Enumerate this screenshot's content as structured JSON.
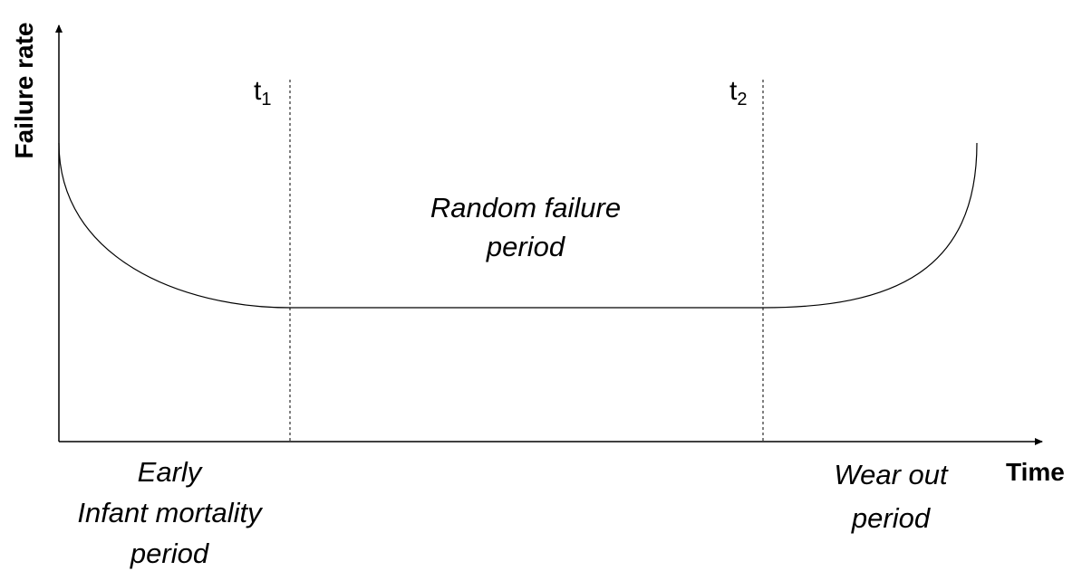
{
  "axes": {
    "y_label": "Failure rate",
    "x_label": "Time"
  },
  "markers": [
    {
      "base": "t",
      "subscript": "1"
    },
    {
      "base": "t",
      "subscript": "2"
    }
  ],
  "regions": [
    {
      "lines": [
        "Early",
        "Infant mortality",
        "period"
      ]
    },
    {
      "lines": [
        "Random failure",
        "period"
      ]
    },
    {
      "lines": [
        "Wear out",
        "period"
      ]
    }
  ]
}
